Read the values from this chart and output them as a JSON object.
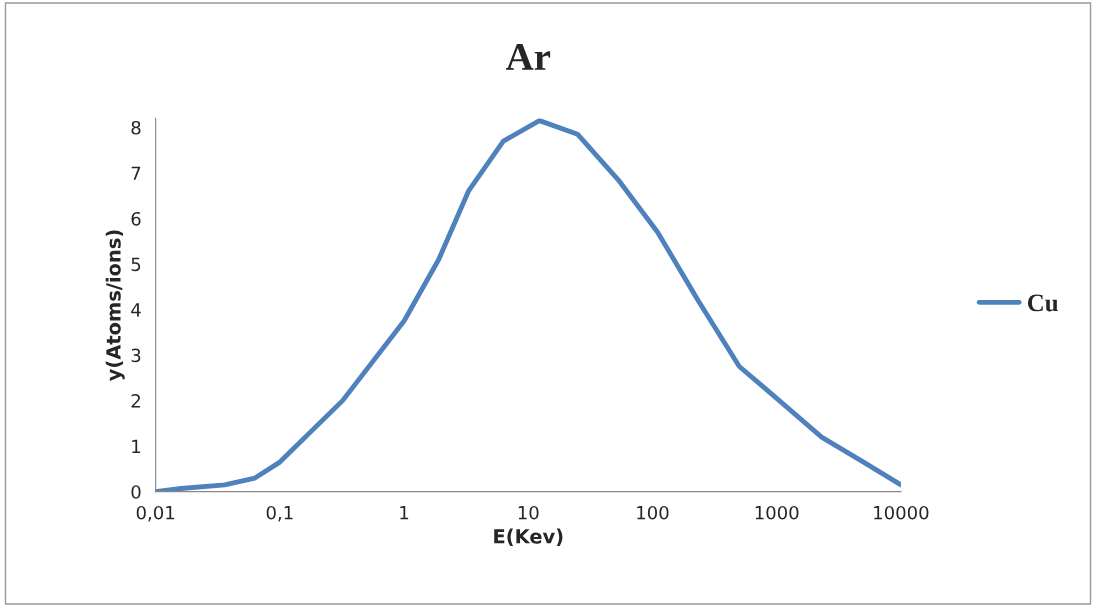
{
  "chart_data": {
    "type": "line",
    "title": "Ar",
    "xlabel": "E(Kev)",
    "ylabel": "y(Atoms/ions)",
    "log": "x",
    "x": [
      0.01,
      0.016,
      0.036,
      0.063,
      0.1,
      0.32,
      1,
      1.9,
      3.3,
      6.3,
      12.3,
      25,
      53,
      110,
      233,
      500,
      1000,
      2300,
      5000,
      10000
    ],
    "series": [
      {
        "name": "Cu",
        "color": "#4f81bd",
        "values": [
          0,
          0.07,
          0.15,
          0.3,
          0.65,
          2,
          3.75,
          5.1,
          6.6,
          7.7,
          8.15,
          7.85,
          6.85,
          5.7,
          4.2,
          2.75,
          2.05,
          1.2,
          0.65,
          0.15
        ]
      }
    ],
    "xlim": [
      0.01,
      10000
    ],
    "xticks": [
      {
        "value": 0.01,
        "label": "0,01"
      },
      {
        "value": 0.1,
        "label": "0,1"
      },
      1,
      10,
      100,
      1000,
      10000
    ],
    "ylim": [
      0,
      8.2
    ],
    "yticks": [
      0,
      1,
      2,
      3,
      4,
      5,
      6,
      7,
      8
    ],
    "grid": false,
    "legend": "right",
    "marker": "none",
    "line_style": "solid"
  }
}
